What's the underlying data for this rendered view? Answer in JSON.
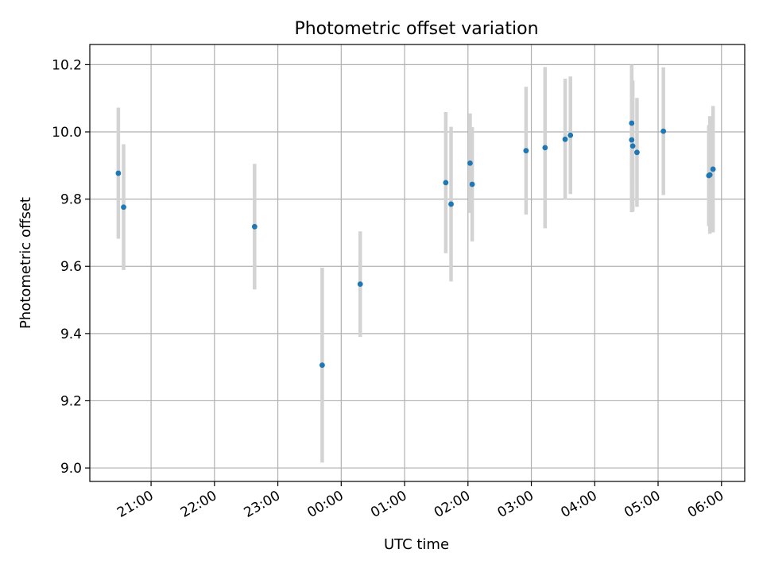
{
  "chart_data": {
    "type": "scatter",
    "title": "Photometric offset variation",
    "xlabel": "UTC time",
    "ylabel": "Photometric offset",
    "x_unit": "UTC time (HH:MM)",
    "xlim": [
      "20:02",
      "06:22"
    ],
    "ylim": [
      8.96,
      10.26
    ],
    "x_ticks": [
      "21:00",
      "22:00",
      "23:00",
      "00:00",
      "01:00",
      "02:00",
      "03:00",
      "04:00",
      "05:00",
      "06:00"
    ],
    "y_ticks": [
      "9.0",
      "9.2",
      "9.4",
      "9.6",
      "9.8",
      "10.0",
      "10.2"
    ],
    "grid": true,
    "colors": {
      "marker": "#1f77b4",
      "errorbar": "#d3d3d3",
      "grid": "#b0b0b0"
    },
    "series": [
      {
        "points": [
          {
            "x": "20:29",
            "y": 9.877,
            "err": 0.195
          },
          {
            "x": "20:34",
            "y": 9.776,
            "err": 0.187
          },
          {
            "x": "22:38",
            "y": 9.718,
            "err": 0.187
          },
          {
            "x": "23:42",
            "y": 9.306,
            "err": 0.29
          },
          {
            "x": "00:18",
            "y": 9.547,
            "err": 0.157
          },
          {
            "x": "01:39",
            "y": 9.849,
            "err": 0.21
          },
          {
            "x": "01:44",
            "y": 9.785,
            "err": 0.23
          },
          {
            "x": "02:02",
            "y": 9.907,
            "err": 0.148
          },
          {
            "x": "02:04",
            "y": 9.844,
            "err": 0.17
          },
          {
            "x": "02:55",
            "y": 9.944,
            "err": 0.19
          },
          {
            "x": "03:13",
            "y": 9.953,
            "err": 0.24
          },
          {
            "x": "03:32",
            "y": 9.978,
            "err": 0.18
          },
          {
            "x": "03:37",
            "y": 9.99,
            "err": 0.175
          },
          {
            "x": "04:35",
            "y": 9.976,
            "err": 0.215
          },
          {
            "x": "04:35",
            "y": 10.026,
            "err": 0.173
          },
          {
            "x": "04:36",
            "y": 9.958,
            "err": 0.195
          },
          {
            "x": "04:40",
            "y": 9.939,
            "err": 0.162
          },
          {
            "x": "05:05",
            "y": 10.002,
            "err": 0.19
          },
          {
            "x": "05:48",
            "y": 9.87,
            "err": 0.15
          },
          {
            "x": "05:49",
            "y": 9.872,
            "err": 0.175
          },
          {
            "x": "05:52",
            "y": 9.889,
            "err": 0.188
          }
        ]
      }
    ]
  }
}
